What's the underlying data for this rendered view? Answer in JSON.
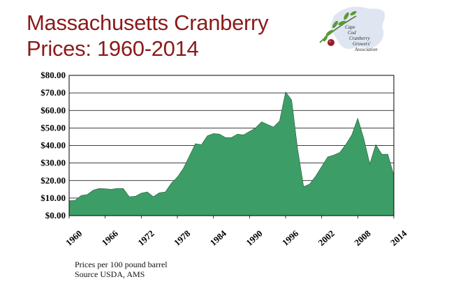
{
  "title": {
    "line1": "Massachusetts Cranberry",
    "line2": "Prices:  1960-2014"
  },
  "logo": {
    "lines": [
      "Cape",
      "Cod",
      "Cranberry",
      "Growers'",
      "Association"
    ]
  },
  "caption": {
    "line1": "Prices per 100 pound barrel",
    "line2": "Source USDA, AMS"
  },
  "chart_data": {
    "type": "area",
    "title": "",
    "xlabel": "",
    "ylabel": "",
    "xlim": [
      1960,
      2014
    ],
    "ylim": [
      0,
      80
    ],
    "grid": true,
    "fill_color": "#3c9e66",
    "x": [
      1960,
      1961,
      1962,
      1963,
      1964,
      1965,
      1966,
      1967,
      1968,
      1969,
      1970,
      1971,
      1972,
      1973,
      1974,
      1975,
      1976,
      1977,
      1978,
      1979,
      1980,
      1981,
      1982,
      1983,
      1984,
      1985,
      1986,
      1987,
      1988,
      1989,
      1990,
      1991,
      1992,
      1993,
      1994,
      1995,
      1996,
      1997,
      1998,
      1999,
      2000,
      2001,
      2002,
      2003,
      2004,
      2005,
      2006,
      2007,
      2008,
      2009,
      2010,
      2011,
      2012,
      2013,
      2014
    ],
    "values": [
      8.5,
      8.7,
      11.5,
      12.0,
      14.5,
      15.5,
      15.3,
      15.0,
      15.5,
      15.5,
      10.8,
      11.0,
      12.8,
      13.5,
      10.8,
      13.0,
      13.5,
      18.5,
      22.0,
      27.0,
      34.0,
      41.0,
      40.5,
      45.5,
      46.8,
      46.5,
      44.5,
      44.5,
      46.5,
      46.0,
      48.0,
      50.0,
      53.5,
      52.0,
      50.5,
      54.0,
      70.5,
      66.0,
      38.0,
      16.5,
      18.0,
      22.5,
      28.0,
      33.5,
      34.5,
      36.0,
      40.5,
      46.0,
      55.5,
      44.0,
      29.5,
      40.5,
      35.0,
      35.0,
      23.0
    ],
    "y_ticks": [
      0,
      10,
      20,
      30,
      40,
      50,
      60,
      70,
      80
    ],
    "y_tick_labels": [
      "$0.00",
      "$10.00",
      "$20.00",
      "$30.00",
      "$40.00",
      "$50.00",
      "$60.00",
      "$70.00",
      "$80.00"
    ],
    "x_ticks": [
      1960,
      1966,
      1972,
      1978,
      1984,
      1990,
      1996,
      2002,
      2008,
      2014
    ],
    "x_tick_labels": [
      "1960",
      "1966",
      "1972",
      "1978",
      "1984",
      "1990",
      "1996",
      "2002",
      "2008",
      "2014"
    ]
  }
}
